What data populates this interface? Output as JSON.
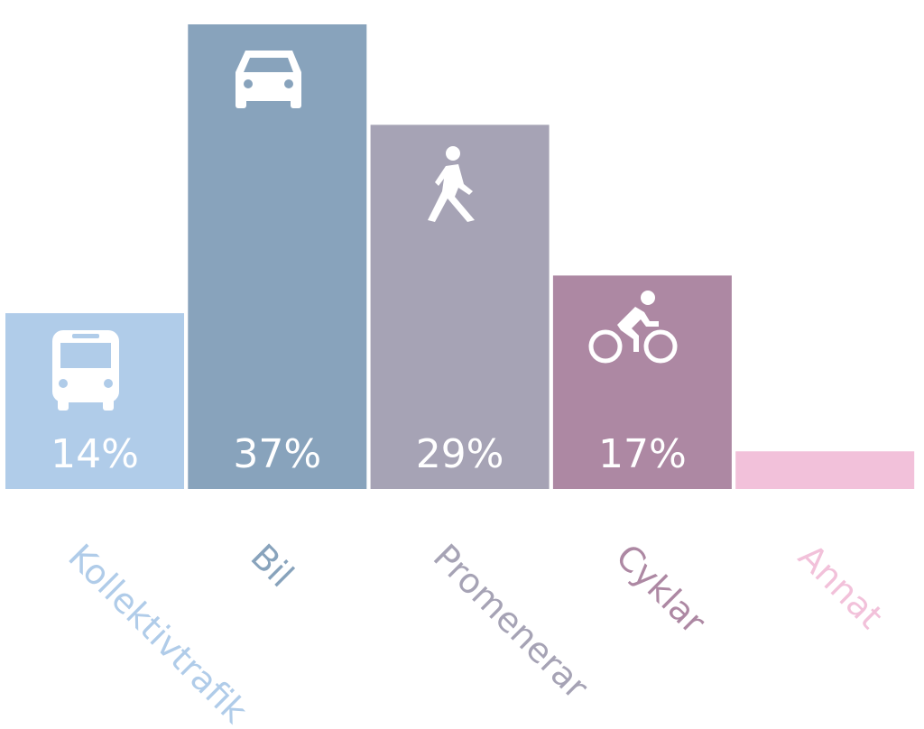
{
  "chart_data": {
    "type": "bar",
    "categories": [
      "Kollektivtrafik",
      "Bil",
      "Promenerar",
      "Cyklar",
      "Annat"
    ],
    "values": [
      14,
      37,
      29,
      17,
      3
    ],
    "value_labels": [
      "14%",
      "37%",
      "29%",
      "17%",
      null
    ],
    "colors": [
      "#b0cce9",
      "#88a3bc",
      "#a6a3b5",
      "#ad88a3",
      "#f2c1da"
    ]
  }
}
